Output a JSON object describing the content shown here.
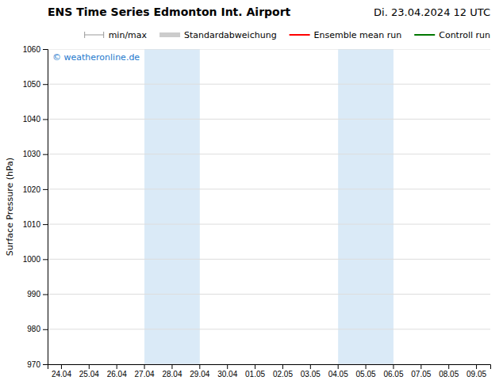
{
  "chart_data": {
    "type": "line",
    "title": "ENS Time Series Edmonton Int. Airport",
    "subtitle": "Di. 23.04.2024 12 UTC",
    "y_label": "Surface Pressure (hPa)",
    "categories": [
      "24.04",
      "25.04",
      "26.04",
      "27.04",
      "28.04",
      "29.04",
      "30.04",
      "01.05",
      "02.05",
      "03.05",
      "04.05",
      "05.05",
      "06.05",
      "07.05",
      "08.05",
      "09.05"
    ],
    "series": [
      {
        "name": "min/max",
        "type": "range",
        "color": "#999999",
        "values": [
          null,
          null,
          null,
          null,
          null,
          null,
          null,
          null,
          null,
          null,
          null,
          null,
          null,
          null,
          null,
          null
        ]
      },
      {
        "name": "Standardabweichung",
        "type": "area",
        "color": "#cccccc",
        "values": [
          null,
          null,
          null,
          null,
          null,
          null,
          null,
          null,
          null,
          null,
          null,
          null,
          null,
          null,
          null,
          null
        ]
      },
      {
        "name": "Ensemble mean run",
        "type": "line",
        "color": "#ff0000",
        "values": [
          null,
          null,
          null,
          null,
          null,
          null,
          null,
          null,
          null,
          null,
          null,
          null,
          null,
          null,
          null,
          null
        ]
      },
      {
        "name": "Controll run",
        "type": "line",
        "color": "#007700",
        "values": [
          null,
          null,
          null,
          null,
          null,
          null,
          null,
          null,
          null,
          null,
          null,
          null,
          null,
          null,
          null,
          null
        ]
      }
    ],
    "shaded_regions": [
      {
        "start": "27.04",
        "end": "29.04",
        "color": "#daeaf7"
      },
      {
        "start": "04.05",
        "end": "06.05",
        "color": "#daeaf7"
      }
    ],
    "annotations": [
      {
        "text": "© weatheronline.de",
        "color": "#2277cc"
      }
    ],
    "ylim": [
      970,
      1060
    ],
    "yticks": [
      970,
      980,
      990,
      1000,
      1010,
      1020,
      1030,
      1040,
      1050,
      1060
    ],
    "grid": "y",
    "legend": "upper right"
  }
}
